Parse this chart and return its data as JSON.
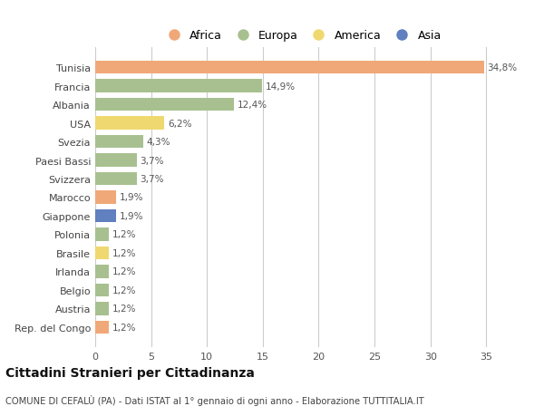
{
  "countries": [
    "Tunisia",
    "Francia",
    "Albania",
    "USA",
    "Svezia",
    "Paesi Bassi",
    "Svizzera",
    "Marocco",
    "Giappone",
    "Polonia",
    "Brasile",
    "Irlanda",
    "Belgio",
    "Austria",
    "Rep. del Congo"
  ],
  "values": [
    34.8,
    14.9,
    12.4,
    6.2,
    4.3,
    3.7,
    3.7,
    1.9,
    1.9,
    1.2,
    1.2,
    1.2,
    1.2,
    1.2,
    1.2
  ],
  "labels": [
    "34,8%",
    "14,9%",
    "12,4%",
    "6,2%",
    "4,3%",
    "3,7%",
    "3,7%",
    "1,9%",
    "1,9%",
    "1,2%",
    "1,2%",
    "1,2%",
    "1,2%",
    "1,2%",
    "1,2%"
  ],
  "continents": [
    "Africa",
    "Europa",
    "Europa",
    "America",
    "Europa",
    "Europa",
    "Europa",
    "Africa",
    "Asia",
    "Europa",
    "America",
    "Europa",
    "Europa",
    "Europa",
    "Africa"
  ],
  "continent_colors": {
    "Africa": "#F0A878",
    "Europa": "#A8C090",
    "America": "#F0D870",
    "Asia": "#6080C0"
  },
  "legend_order": [
    "Africa",
    "Europa",
    "America",
    "Asia"
  ],
  "title": "Cittadini Stranieri per Cittadinanza",
  "subtitle": "COMUNE DI CEFALÙ (PA) - Dati ISTAT al 1° gennaio di ogni anno - Elaborazione TUTTITALIA.IT",
  "xlim": [
    0,
    37
  ],
  "xticks": [
    0,
    5,
    10,
    15,
    20,
    25,
    30,
    35
  ],
  "bg_color": "#FFFFFF",
  "grid_color": "#CCCCCC",
  "bar_height": 0.7
}
